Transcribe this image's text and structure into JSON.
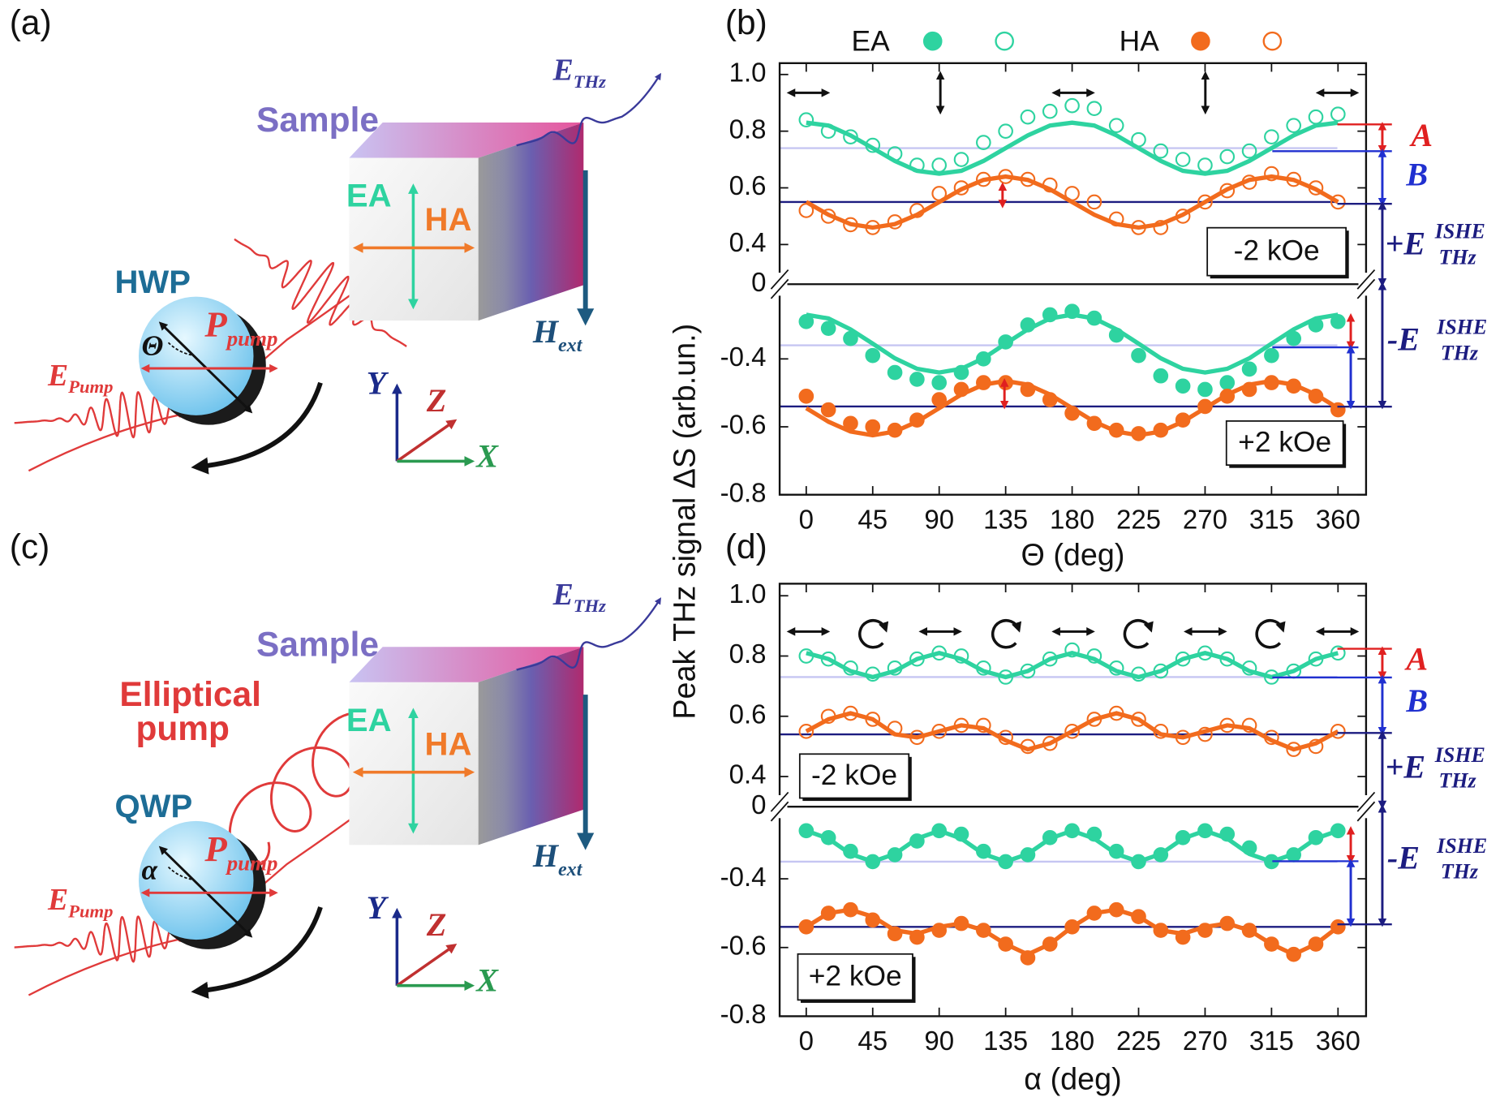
{
  "diagrams": [
    {
      "label": "(a)",
      "sample": "Sample",
      "ea": "EA",
      "ha": "HA",
      "plate": "HWP",
      "angle": "Θ",
      "p": {
        "main": "P",
        "sub": "pump"
      },
      "e_pump": {
        "main": "E",
        "sub": "Pump"
      },
      "e_thz": {
        "main": "E",
        "sub": "THz"
      },
      "h_ext": {
        "main": "H",
        "sub": "ext"
      },
      "axes": [
        "Y",
        "Z",
        "X"
      ]
    },
    {
      "label": "(c)",
      "sample": "Sample",
      "ea": "EA",
      "ha": "HA",
      "plate": "QWP",
      "angle": "α",
      "p": {
        "main": "P",
        "sub": "pump"
      },
      "e_pump": {
        "main": "E",
        "sub": "Pump"
      },
      "e_thz": {
        "main": "E",
        "sub": "THz"
      },
      "h_ext": {
        "main": "H",
        "sub": "ext"
      },
      "axes": [
        "Y",
        "Z",
        "X"
      ],
      "pump_note": [
        "Elliptical",
        "pump"
      ]
    }
  ],
  "chart_data": [
    {
      "type": "line",
      "label": "(b)",
      "ylabel": "Peak THz signal ΔS (arb.un.)",
      "xlabel": "Θ (deg)",
      "legend": "top",
      "x": [
        0,
        15,
        30,
        45,
        60,
        75,
        90,
        105,
        120,
        135,
        150,
        165,
        180,
        195,
        210,
        225,
        240,
        255,
        270,
        285,
        300,
        315,
        330,
        345,
        360
      ],
      "xlim": [
        -18,
        379
      ],
      "xticks": [
        0,
        45,
        90,
        135,
        180,
        225,
        270,
        315,
        360
      ],
      "axis_break_label": "0",
      "annotations": {
        "A": "A",
        "B": "B",
        "plus_e": {
          "main": "+E",
          "sup": "ISHE",
          "sub": "THz"
        },
        "minus_e": {
          "main": "-E",
          "sup": "ISHE",
          "sub": "THz"
        }
      },
      "panels": [
        {
          "annotation": "-2 kOe",
          "marker": "open",
          "ylim": [
            0.26,
            1.04
          ],
          "yticks": [
            0.4,
            0.6,
            0.8,
            {
              "value": 1,
              "label": "1.0"
            }
          ],
          "hlines": [
            {
              "value": 0.74,
              "color": "#c6c6f2"
            },
            {
              "value": 0.55,
              "color": "#1c1c80"
            }
          ],
          "series": [
            {
              "name": "EA",
              "color": "#2ed3a0",
              "values": [
                0.84,
                0.8,
                0.78,
                0.75,
                0.72,
                0.68,
                0.68,
                0.7,
                0.76,
                0.8,
                0.85,
                0.87,
                0.89,
                0.88,
                0.82,
                0.77,
                0.73,
                0.7,
                0.68,
                0.71,
                0.73,
                0.78,
                0.82,
                0.85,
                0.86
              ],
              "fit": [
                0.83,
                0.82,
                0.785,
                0.74,
                0.695,
                0.66,
                0.65,
                0.66,
                0.695,
                0.74,
                0.785,
                0.82,
                0.83,
                0.82,
                0.785,
                0.74,
                0.695,
                0.66,
                0.65,
                0.66,
                0.695,
                0.74,
                0.785,
                0.82,
                0.83
              ]
            },
            {
              "name": "HA",
              "color": "#f26b1d",
              "values": [
                0.52,
                0.5,
                0.47,
                0.46,
                0.48,
                0.52,
                0.58,
                0.6,
                0.63,
                0.64,
                0.63,
                0.61,
                0.58,
                0.55,
                0.49,
                0.46,
                0.46,
                0.5,
                0.55,
                0.59,
                0.62,
                0.65,
                0.63,
                0.6,
                0.55
              ],
              "fit": [
                0.55,
                0.505,
                0.472,
                0.46,
                0.472,
                0.505,
                0.55,
                0.595,
                0.628,
                0.64,
                0.628,
                0.595,
                0.55,
                0.505,
                0.472,
                0.46,
                0.472,
                0.505,
                0.55,
                0.595,
                0.628,
                0.64,
                0.628,
                0.595,
                0.55
              ]
            }
          ]
        },
        {
          "annotation": "+2 kOe",
          "marker": "filled",
          "ylim": [
            -0.8,
            -0.18
          ],
          "yticks": [
            -0.8,
            -0.6,
            -0.4
          ],
          "hlines": [
            {
              "value": -0.36,
              "color": "#c6c6f2"
            },
            {
              "value": -0.54,
              "color": "#1c1c80"
            }
          ],
          "series": [
            {
              "name": "EA",
              "color": "#2ed3a0",
              "values": [
                -0.29,
                -0.31,
                -0.34,
                -0.39,
                -0.44,
                -0.46,
                -0.47,
                -0.44,
                -0.4,
                -0.35,
                -0.3,
                -0.27,
                -0.26,
                -0.28,
                -0.33,
                -0.39,
                -0.45,
                -0.48,
                -0.49,
                -0.47,
                -0.43,
                -0.39,
                -0.34,
                -0.3,
                -0.29
              ],
              "fit": [
                -0.27,
                -0.281,
                -0.313,
                -0.355,
                -0.398,
                -0.429,
                -0.44,
                -0.429,
                -0.398,
                -0.355,
                -0.313,
                -0.281,
                -0.27,
                -0.281,
                -0.313,
                -0.355,
                -0.398,
                -0.429,
                -0.44,
                -0.429,
                -0.398,
                -0.355,
                -0.313,
                -0.281,
                -0.27
              ]
            },
            {
              "name": "HA",
              "color": "#f26b1d",
              "values": [
                -0.51,
                -0.55,
                -0.59,
                -0.6,
                -0.61,
                -0.58,
                -0.52,
                -0.49,
                -0.47,
                -0.47,
                -0.49,
                -0.52,
                -0.56,
                -0.59,
                -0.61,
                -0.62,
                -0.61,
                -0.58,
                -0.54,
                -0.51,
                -0.49,
                -0.47,
                -0.48,
                -0.51,
                -0.55
              ],
              "fit": [
                -0.545,
                -0.585,
                -0.614,
                -0.625,
                -0.614,
                -0.585,
                -0.545,
                -0.505,
                -0.476,
                -0.465,
                -0.476,
                -0.505,
                -0.545,
                -0.585,
                -0.614,
                -0.625,
                -0.614,
                -0.585,
                -0.545,
                -0.505,
                -0.476,
                -0.465,
                -0.476,
                -0.505,
                -0.545
              ]
            }
          ]
        }
      ]
    },
    {
      "type": "line",
      "label": "(d)",
      "xlabel": "α (deg)",
      "x": [
        0,
        15,
        30,
        45,
        60,
        75,
        90,
        105,
        120,
        135,
        150,
        165,
        180,
        195,
        210,
        225,
        240,
        255,
        270,
        285,
        300,
        315,
        330,
        345,
        360
      ],
      "xlim": [
        -18,
        379
      ],
      "xticks": [
        0,
        45,
        90,
        135,
        180,
        225,
        270,
        315,
        360
      ],
      "axis_break_label": "0",
      "annotations": {
        "A": "A",
        "B": "B",
        "plus_e": {
          "main": "+E",
          "sup": "ISHE",
          "sub": "THz"
        },
        "minus_e": {
          "main": "-E",
          "sup": "ISHE",
          "sub": "THz"
        }
      },
      "panels": [
        {
          "annotation": "-2 kOe",
          "marker": "open",
          "ylim": [
            0.3,
            1.04
          ],
          "yticks": [
            0.4,
            0.6,
            0.8,
            {
              "value": 1,
              "label": "1.0"
            }
          ],
          "hlines": [
            {
              "value": 0.73,
              "color": "#c6c6f2"
            },
            {
              "value": 0.54,
              "color": "#1c1c80"
            }
          ],
          "series": [
            {
              "name": "EA",
              "color": "#2ed3a0",
              "values": [
                0.8,
                0.79,
                0.76,
                0.74,
                0.76,
                0.79,
                0.81,
                0.8,
                0.76,
                0.73,
                0.75,
                0.79,
                0.82,
                0.8,
                0.76,
                0.74,
                0.75,
                0.79,
                0.81,
                0.79,
                0.76,
                0.73,
                0.75,
                0.79,
                0.81
              ],
              "fit": [
                0.81,
                0.79,
                0.75,
                0.73,
                0.75,
                0.79,
                0.81,
                0.79,
                0.75,
                0.73,
                0.75,
                0.79,
                0.81,
                0.79,
                0.75,
                0.73,
                0.75,
                0.79,
                0.81,
                0.79,
                0.75,
                0.73,
                0.75,
                0.79,
                0.81
              ]
            },
            {
              "name": "HA",
              "color": "#f26b1d",
              "values": [
                0.55,
                0.6,
                0.61,
                0.59,
                0.56,
                0.53,
                0.55,
                0.57,
                0.57,
                0.53,
                0.5,
                0.51,
                0.55,
                0.59,
                0.61,
                0.59,
                0.55,
                0.53,
                0.54,
                0.57,
                0.57,
                0.53,
                0.49,
                0.5,
                0.55
              ],
              "fit": [
                0.55,
                0.59,
                0.61,
                0.59,
                0.54,
                0.53,
                0.55,
                0.57,
                0.56,
                0.52,
                0.49,
                0.51,
                0.55,
                0.59,
                0.61,
                0.59,
                0.54,
                0.53,
                0.55,
                0.57,
                0.56,
                0.52,
                0.49,
                0.51,
                0.55
              ]
            }
          ]
        },
        {
          "annotation": "+2 kOe",
          "marker": "filled",
          "ylim": [
            -0.8,
            -0.19
          ],
          "yticks": [
            -0.8,
            -0.6,
            -0.4
          ],
          "hlines": [
            {
              "value": -0.35,
              "color": "#c6c6f2"
            },
            {
              "value": -0.54,
              "color": "#1c1c80"
            }
          ],
          "series": [
            {
              "name": "EA",
              "color": "#2ed3a0",
              "values": [
                -0.26,
                -0.28,
                -0.32,
                -0.35,
                -0.33,
                -0.29,
                -0.26,
                -0.27,
                -0.32,
                -0.35,
                -0.33,
                -0.28,
                -0.26,
                -0.27,
                -0.32,
                -0.35,
                -0.33,
                -0.28,
                -0.26,
                -0.27,
                -0.31,
                -0.35,
                -0.33,
                -0.28,
                -0.26
              ],
              "fit": [
                -0.26,
                -0.283,
                -0.328,
                -0.35,
                -0.328,
                -0.283,
                -0.26,
                -0.283,
                -0.328,
                -0.35,
                -0.328,
                -0.283,
                -0.26,
                -0.283,
                -0.328,
                -0.35,
                -0.328,
                -0.283,
                -0.26,
                -0.283,
                -0.328,
                -0.35,
                -0.328,
                -0.283,
                -0.26
              ]
            },
            {
              "name": "HA",
              "color": "#f26b1d",
              "values": [
                -0.54,
                -0.5,
                -0.49,
                -0.52,
                -0.56,
                -0.57,
                -0.55,
                -0.53,
                -0.55,
                -0.59,
                -0.63,
                -0.59,
                -0.54,
                -0.5,
                -0.49,
                -0.51,
                -0.55,
                -0.57,
                -0.55,
                -0.53,
                -0.55,
                -0.59,
                -0.62,
                -0.59,
                -0.54
              ],
              "fit": [
                -0.54,
                -0.5,
                -0.49,
                -0.51,
                -0.55,
                -0.56,
                -0.54,
                -0.53,
                -0.55,
                -0.59,
                -0.62,
                -0.59,
                -0.54,
                -0.5,
                -0.49,
                -0.51,
                -0.55,
                -0.56,
                -0.54,
                -0.53,
                -0.55,
                -0.59,
                -0.62,
                -0.59,
                -0.54
              ]
            }
          ]
        }
      ]
    }
  ]
}
